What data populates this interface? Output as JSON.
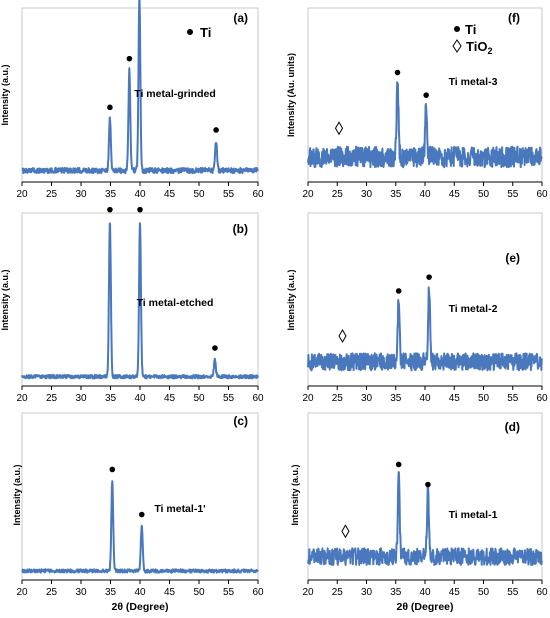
{
  "figure": {
    "common_xlabel": "2θ (Degree)",
    "legend_ti": "Ti",
    "legend_tio2": "TiO",
    "legend_tio2_sub": "2",
    "colors": {
      "trace": "#4a78bd",
      "axis": "#000000",
      "marker": "#000000"
    }
  },
  "chart_data": [
    {
      "id": "a",
      "panel_label": "(a)",
      "sample_label": "Ti metal-grinded",
      "type": "line",
      "ylabel": "Intensity (a.u.)",
      "xlabel": "",
      "xlim": [
        20,
        60
      ],
      "xticks": [
        20,
        25,
        30,
        35,
        40,
        45,
        50,
        55,
        60
      ],
      "y_tick_labels": false,
      "grid": false,
      "legend": "top-right: ● Ti",
      "baseline": 0.06,
      "noise": 0.03,
      "peaks": [
        {
          "x": 34.9,
          "height": 0.3,
          "phase": "Ti"
        },
        {
          "x": 38.2,
          "height": 0.58,
          "phase": "Ti"
        },
        {
          "x": 39.9,
          "height": 1.0,
          "phase": "Ti"
        },
        {
          "x": 52.9,
          "height": 0.17,
          "phase": "Ti"
        }
      ]
    },
    {
      "id": "b",
      "panel_label": "(b)",
      "sample_label": "Ti metal-etched",
      "type": "line",
      "ylabel": "Intensity (a.u.)",
      "xlabel": "",
      "xlim": [
        20,
        60
      ],
      "xticks": [
        20,
        25,
        30,
        35,
        40,
        45,
        50,
        55,
        60
      ],
      "y_tick_labels": false,
      "grid": false,
      "baseline": 0.05,
      "noise": 0.02,
      "peaks": [
        {
          "x": 34.9,
          "height": 0.9,
          "phase": "Ti"
        },
        {
          "x": 40.0,
          "height": 0.9,
          "phase": "Ti"
        },
        {
          "x": 52.7,
          "height": 0.1,
          "phase": "Ti"
        }
      ]
    },
    {
      "id": "c",
      "panel_label": "(c)",
      "sample_label": "Ti metal-1'",
      "type": "line",
      "ylabel": "Intensity (a.u.)",
      "xlabel": "2θ (Degree)",
      "xlim": [
        20,
        60
      ],
      "xticks": [
        20,
        25,
        30,
        35,
        40,
        45,
        50,
        55,
        60
      ],
      "y_tick_labels": false,
      "grid": false,
      "baseline": 0.05,
      "noise": 0.02,
      "peaks": [
        {
          "x": 35.3,
          "height": 0.54,
          "phase": "Ti"
        },
        {
          "x": 40.3,
          "height": 0.27,
          "phase": "Ti"
        }
      ]
    },
    {
      "id": "f",
      "panel_label": "(f)",
      "sample_label": "Ti metal-3",
      "type": "line",
      "ylabel": "Intensity (Au. units)",
      "xlabel": "",
      "xlim": [
        20,
        60
      ],
      "xticks": [
        20,
        25,
        30,
        35,
        40,
        45,
        50,
        55,
        60
      ],
      "y_tick_labels": false,
      "grid": false,
      "legend": "top-right: ● Ti, ◇ TiO2",
      "baseline": 0.12,
      "noise": 0.12,
      "tio2_marker_x": 25.3,
      "peaks": [
        {
          "x": 35.3,
          "height": 0.44,
          "phase": "Ti"
        },
        {
          "x": 40.2,
          "height": 0.31,
          "phase": "Ti"
        }
      ]
    },
    {
      "id": "e",
      "panel_label": "(e)",
      "sample_label": "Ti metal-2",
      "type": "line",
      "ylabel": "Intensity (a.u.)",
      "xlabel": "",
      "xlim": [
        20,
        60
      ],
      "xticks": [
        20,
        25,
        30,
        35,
        40,
        45,
        50,
        55,
        60
      ],
      "y_tick_labels": false,
      "grid": false,
      "baseline": 0.12,
      "noise": 0.1,
      "tio2_marker_x": 25.9,
      "peaks": [
        {
          "x": 35.5,
          "height": 0.36,
          "phase": "Ti"
        },
        {
          "x": 40.7,
          "height": 0.44,
          "phase": "Ti"
        }
      ]
    },
    {
      "id": "d",
      "panel_label": "(d)",
      "sample_label": "Ti metal-1",
      "type": "line",
      "ylabel": "Intensity (a.u.)",
      "xlabel": "2θ (Degree)",
      "xlim": [
        20,
        60
      ],
      "xticks": [
        20,
        25,
        30,
        35,
        40,
        45,
        50,
        55,
        60
      ],
      "y_tick_labels": false,
      "grid": false,
      "baseline": 0.12,
      "noise": 0.1,
      "tio2_marker_x": 26.4,
      "peaks": [
        {
          "x": 35.5,
          "height": 0.5,
          "phase": "Ti"
        },
        {
          "x": 40.5,
          "height": 0.38,
          "phase": "Ti"
        }
      ]
    }
  ]
}
